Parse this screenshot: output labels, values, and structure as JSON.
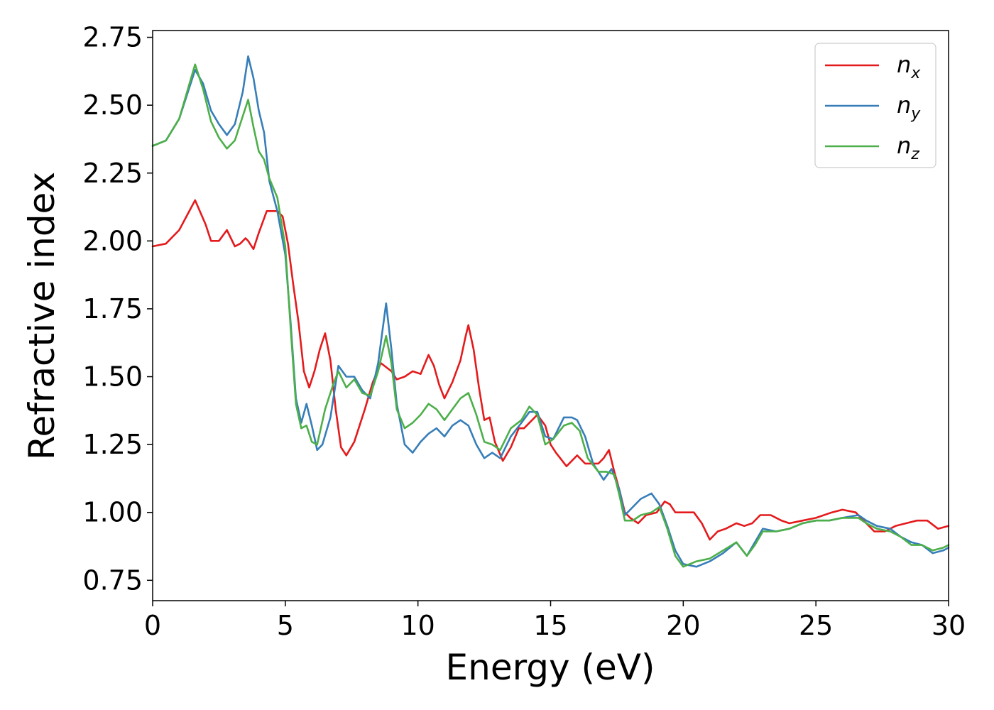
{
  "chart_data": {
    "type": "line",
    "xlabel": "Energy (eV)",
    "ylabel": "Refractive index",
    "xlim": [
      0,
      30
    ],
    "ylim": [
      0.675,
      2.775
    ],
    "xticks": [
      0,
      5,
      10,
      15,
      20,
      25,
      30
    ],
    "xtick_labels": [
      "0",
      "5",
      "10",
      "15",
      "20",
      "25",
      "30"
    ],
    "yticks": [
      0.75,
      1.0,
      1.25,
      1.5,
      1.75,
      2.0,
      2.25,
      2.5,
      2.75
    ],
    "ytick_labels": [
      "0.75",
      "1.00",
      "1.25",
      "1.50",
      "1.75",
      "2.00",
      "2.25",
      "2.50",
      "2.75"
    ],
    "grid": false,
    "legend_position": "top-right",
    "series": [
      {
        "name": "n",
        "subscript": "x",
        "color": "#e41a1c",
        "points": [
          [
            0,
            1.98
          ],
          [
            0.5,
            1.99
          ],
          [
            1.0,
            2.04
          ],
          [
            1.6,
            2.15
          ],
          [
            2.0,
            2.06
          ],
          [
            2.2,
            2.0
          ],
          [
            2.5,
            2.0
          ],
          [
            2.8,
            2.04
          ],
          [
            3.1,
            1.98
          ],
          [
            3.3,
            1.99
          ],
          [
            3.5,
            2.01
          ],
          [
            3.6,
            2.0
          ],
          [
            3.8,
            1.97
          ],
          [
            4.0,
            2.03
          ],
          [
            4.3,
            2.11
          ],
          [
            4.7,
            2.11
          ],
          [
            4.9,
            2.09
          ],
          [
            5.1,
            1.99
          ],
          [
            5.3,
            1.84
          ],
          [
            5.5,
            1.7
          ],
          [
            5.7,
            1.52
          ],
          [
            5.9,
            1.46
          ],
          [
            6.1,
            1.52
          ],
          [
            6.3,
            1.6
          ],
          [
            6.5,
            1.66
          ],
          [
            6.7,
            1.56
          ],
          [
            6.9,
            1.38
          ],
          [
            7.1,
            1.24
          ],
          [
            7.3,
            1.21
          ],
          [
            7.6,
            1.26
          ],
          [
            8.0,
            1.38
          ],
          [
            8.3,
            1.48
          ],
          [
            8.6,
            1.55
          ],
          [
            9.0,
            1.52
          ],
          [
            9.2,
            1.49
          ],
          [
            9.5,
            1.5
          ],
          [
            9.8,
            1.52
          ],
          [
            10.1,
            1.51
          ],
          [
            10.4,
            1.58
          ],
          [
            10.6,
            1.54
          ],
          [
            10.8,
            1.47
          ],
          [
            11.0,
            1.42
          ],
          [
            11.3,
            1.48
          ],
          [
            11.6,
            1.56
          ],
          [
            11.8,
            1.65
          ],
          [
            11.9,
            1.69
          ],
          [
            12.1,
            1.6
          ],
          [
            12.3,
            1.46
          ],
          [
            12.5,
            1.34
          ],
          [
            12.7,
            1.35
          ],
          [
            12.9,
            1.26
          ],
          [
            13.2,
            1.19
          ],
          [
            13.5,
            1.24
          ],
          [
            13.8,
            1.31
          ],
          [
            14.0,
            1.31
          ],
          [
            14.5,
            1.36
          ],
          [
            14.8,
            1.32
          ],
          [
            15.0,
            1.25
          ],
          [
            15.2,
            1.22
          ],
          [
            15.6,
            1.17
          ],
          [
            15.8,
            1.19
          ],
          [
            16.0,
            1.21
          ],
          [
            16.3,
            1.18
          ],
          [
            16.8,
            1.18
          ],
          [
            17.0,
            1.2
          ],
          [
            17.2,
            1.23
          ],
          [
            17.4,
            1.15
          ],
          [
            17.6,
            1.08
          ],
          [
            17.8,
            1.0
          ],
          [
            18.0,
            0.98
          ],
          [
            18.3,
            0.96
          ],
          [
            18.6,
            0.99
          ],
          [
            19.0,
            1.0
          ],
          [
            19.3,
            1.04
          ],
          [
            19.5,
            1.03
          ],
          [
            19.7,
            1.0
          ],
          [
            20.0,
            1.0
          ],
          [
            20.4,
            1.0
          ],
          [
            20.7,
            0.96
          ],
          [
            21.0,
            0.9
          ],
          [
            21.3,
            0.93
          ],
          [
            21.6,
            0.94
          ],
          [
            22.0,
            0.96
          ],
          [
            22.3,
            0.95
          ],
          [
            22.6,
            0.96
          ],
          [
            22.9,
            0.99
          ],
          [
            23.3,
            0.99
          ],
          [
            23.7,
            0.97
          ],
          [
            24.0,
            0.96
          ],
          [
            24.5,
            0.97
          ],
          [
            25.0,
            0.98
          ],
          [
            25.6,
            1.0
          ],
          [
            26.0,
            1.01
          ],
          [
            26.5,
            1.0
          ],
          [
            26.8,
            0.97
          ],
          [
            27.2,
            0.93
          ],
          [
            27.6,
            0.93
          ],
          [
            28.0,
            0.95
          ],
          [
            28.4,
            0.96
          ],
          [
            28.8,
            0.97
          ],
          [
            29.2,
            0.97
          ],
          [
            29.6,
            0.94
          ],
          [
            30.0,
            0.95
          ]
        ]
      },
      {
        "name": "n",
        "subscript": "y",
        "color": "#377eb8",
        "points": [
          [
            0,
            2.35
          ],
          [
            0.5,
            2.37
          ],
          [
            1.0,
            2.45
          ],
          [
            1.6,
            2.63
          ],
          [
            1.9,
            2.58
          ],
          [
            2.2,
            2.48
          ],
          [
            2.5,
            2.43
          ],
          [
            2.8,
            2.39
          ],
          [
            3.1,
            2.43
          ],
          [
            3.4,
            2.55
          ],
          [
            3.6,
            2.68
          ],
          [
            3.8,
            2.6
          ],
          [
            4.0,
            2.48
          ],
          [
            4.2,
            2.4
          ],
          [
            4.4,
            2.22
          ],
          [
            4.7,
            2.11
          ],
          [
            5.0,
            1.95
          ],
          [
            5.2,
            1.7
          ],
          [
            5.4,
            1.42
          ],
          [
            5.6,
            1.33
          ],
          [
            5.8,
            1.4
          ],
          [
            6.0,
            1.32
          ],
          [
            6.2,
            1.23
          ],
          [
            6.4,
            1.25
          ],
          [
            6.7,
            1.35
          ],
          [
            7.0,
            1.54
          ],
          [
            7.3,
            1.5
          ],
          [
            7.6,
            1.5
          ],
          [
            7.9,
            1.45
          ],
          [
            8.2,
            1.42
          ],
          [
            8.5,
            1.55
          ],
          [
            8.8,
            1.77
          ],
          [
            9.0,
            1.6
          ],
          [
            9.2,
            1.4
          ],
          [
            9.5,
            1.25
          ],
          [
            9.8,
            1.22
          ],
          [
            10.1,
            1.26
          ],
          [
            10.4,
            1.29
          ],
          [
            10.7,
            1.31
          ],
          [
            11.0,
            1.28
          ],
          [
            11.3,
            1.32
          ],
          [
            11.6,
            1.34
          ],
          [
            11.9,
            1.32
          ],
          [
            12.2,
            1.25
          ],
          [
            12.5,
            1.2
          ],
          [
            12.8,
            1.22
          ],
          [
            13.1,
            1.2
          ],
          [
            13.5,
            1.28
          ],
          [
            13.9,
            1.33
          ],
          [
            14.2,
            1.37
          ],
          [
            14.5,
            1.37
          ],
          [
            14.8,
            1.28
          ],
          [
            15.1,
            1.27
          ],
          [
            15.5,
            1.35
          ],
          [
            15.8,
            1.35
          ],
          [
            16.0,
            1.34
          ],
          [
            16.3,
            1.28
          ],
          [
            16.6,
            1.18
          ],
          [
            17.0,
            1.12
          ],
          [
            17.3,
            1.16
          ],
          [
            17.6,
            1.08
          ],
          [
            17.8,
            0.99
          ],
          [
            18.1,
            1.02
          ],
          [
            18.4,
            1.05
          ],
          [
            18.8,
            1.07
          ],
          [
            19.1,
            1.03
          ],
          [
            19.4,
            0.95
          ],
          [
            19.7,
            0.86
          ],
          [
            20.0,
            0.81
          ],
          [
            20.5,
            0.8
          ],
          [
            21.0,
            0.82
          ],
          [
            21.5,
            0.85
          ],
          [
            22.0,
            0.89
          ],
          [
            22.4,
            0.84
          ],
          [
            22.7,
            0.89
          ],
          [
            23.0,
            0.94
          ],
          [
            23.5,
            0.93
          ],
          [
            24.0,
            0.94
          ],
          [
            24.5,
            0.96
          ],
          [
            25.0,
            0.97
          ],
          [
            25.5,
            0.97
          ],
          [
            26.0,
            0.98
          ],
          [
            26.6,
            0.99
          ],
          [
            26.9,
            0.97
          ],
          [
            27.3,
            0.95
          ],
          [
            27.8,
            0.94
          ],
          [
            28.2,
            0.91
          ],
          [
            28.6,
            0.89
          ],
          [
            29.0,
            0.88
          ],
          [
            29.4,
            0.85
          ],
          [
            29.8,
            0.86
          ],
          [
            30.0,
            0.87
          ]
        ]
      },
      {
        "name": "n",
        "subscript": "z",
        "color": "#4daf4a",
        "points": [
          [
            0,
            2.35
          ],
          [
            0.5,
            2.37
          ],
          [
            1.0,
            2.45
          ],
          [
            1.6,
            2.65
          ],
          [
            1.9,
            2.56
          ],
          [
            2.2,
            2.44
          ],
          [
            2.5,
            2.38
          ],
          [
            2.8,
            2.34
          ],
          [
            3.1,
            2.37
          ],
          [
            3.4,
            2.46
          ],
          [
            3.6,
            2.52
          ],
          [
            3.8,
            2.42
          ],
          [
            4.0,
            2.33
          ],
          [
            4.2,
            2.3
          ],
          [
            4.4,
            2.23
          ],
          [
            4.7,
            2.16
          ],
          [
            5.0,
            1.98
          ],
          [
            5.2,
            1.68
          ],
          [
            5.4,
            1.4
          ],
          [
            5.6,
            1.31
          ],
          [
            5.8,
            1.32
          ],
          [
            6.0,
            1.26
          ],
          [
            6.2,
            1.25
          ],
          [
            6.5,
            1.38
          ],
          [
            6.8,
            1.47
          ],
          [
            7.0,
            1.52
          ],
          [
            7.3,
            1.46
          ],
          [
            7.6,
            1.49
          ],
          [
            7.9,
            1.44
          ],
          [
            8.2,
            1.43
          ],
          [
            8.5,
            1.52
          ],
          [
            8.8,
            1.65
          ],
          [
            9.0,
            1.55
          ],
          [
            9.2,
            1.38
          ],
          [
            9.5,
            1.31
          ],
          [
            9.8,
            1.33
          ],
          [
            10.1,
            1.36
          ],
          [
            10.4,
            1.4
          ],
          [
            10.7,
            1.38
          ],
          [
            11.0,
            1.34
          ],
          [
            11.3,
            1.38
          ],
          [
            11.6,
            1.42
          ],
          [
            11.9,
            1.44
          ],
          [
            12.2,
            1.36
          ],
          [
            12.5,
            1.26
          ],
          [
            12.8,
            1.25
          ],
          [
            13.1,
            1.23
          ],
          [
            13.5,
            1.31
          ],
          [
            13.9,
            1.34
          ],
          [
            14.2,
            1.39
          ],
          [
            14.5,
            1.36
          ],
          [
            14.8,
            1.25
          ],
          [
            15.1,
            1.27
          ],
          [
            15.5,
            1.32
          ],
          [
            15.8,
            1.33
          ],
          [
            16.1,
            1.3
          ],
          [
            16.4,
            1.2
          ],
          [
            16.8,
            1.15
          ],
          [
            17.1,
            1.15
          ],
          [
            17.4,
            1.14
          ],
          [
            17.6,
            1.06
          ],
          [
            17.8,
            0.97
          ],
          [
            18.1,
            0.97
          ],
          [
            18.4,
            0.99
          ],
          [
            18.8,
            1.0
          ],
          [
            19.1,
            1.02
          ],
          [
            19.4,
            0.94
          ],
          [
            19.7,
            0.84
          ],
          [
            20.0,
            0.8
          ],
          [
            20.5,
            0.82
          ],
          [
            21.0,
            0.83
          ],
          [
            21.5,
            0.86
          ],
          [
            22.0,
            0.89
          ],
          [
            22.4,
            0.84
          ],
          [
            22.7,
            0.88
          ],
          [
            23.0,
            0.93
          ],
          [
            23.5,
            0.93
          ],
          [
            24.0,
            0.94
          ],
          [
            24.5,
            0.96
          ],
          [
            25.0,
            0.97
          ],
          [
            25.5,
            0.97
          ],
          [
            26.0,
            0.98
          ],
          [
            26.6,
            0.98
          ],
          [
            26.9,
            0.96
          ],
          [
            27.3,
            0.94
          ],
          [
            27.8,
            0.93
          ],
          [
            28.2,
            0.91
          ],
          [
            28.6,
            0.88
          ],
          [
            29.0,
            0.88
          ],
          [
            29.4,
            0.86
          ],
          [
            29.8,
            0.87
          ],
          [
            30.0,
            0.88
          ]
        ]
      }
    ]
  }
}
